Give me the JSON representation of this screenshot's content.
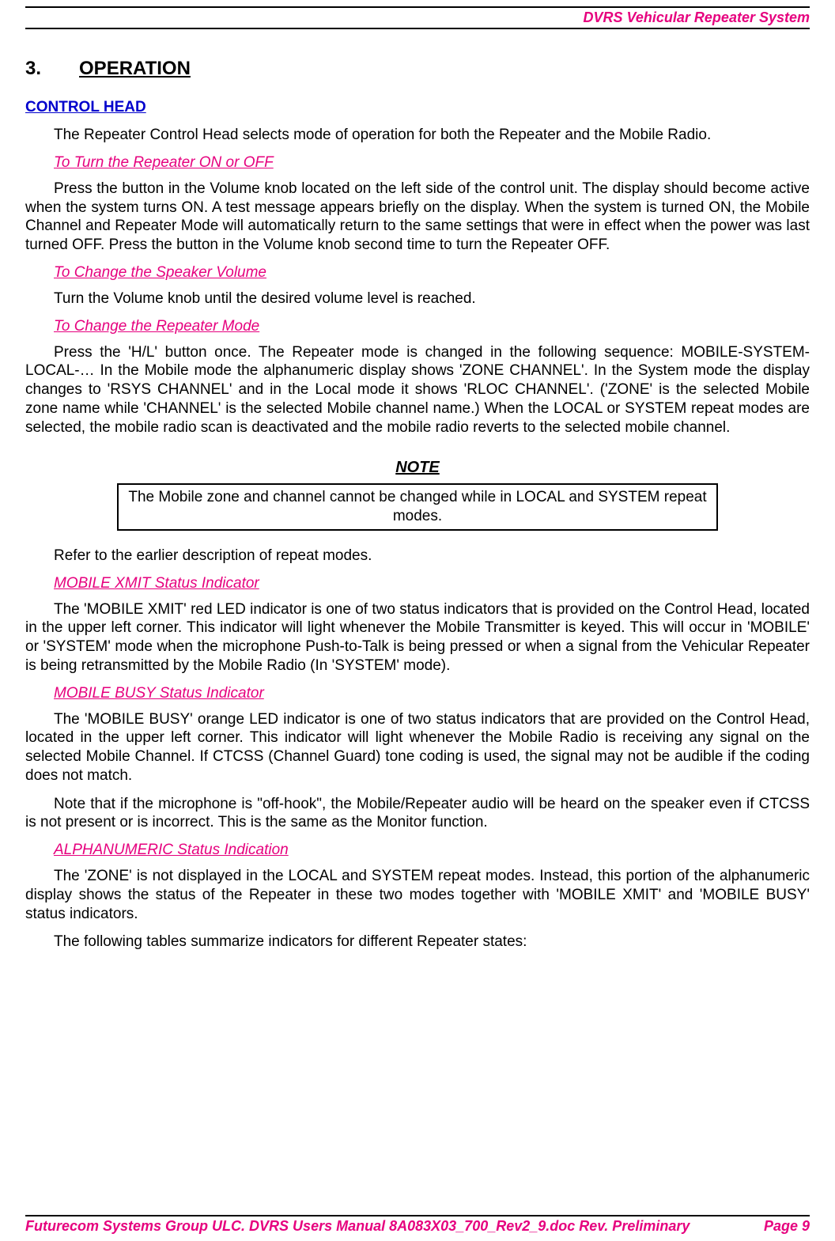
{
  "header": {
    "title": "DVRS Vehicular Repeater System"
  },
  "section": {
    "number": "3.",
    "title": "OPERATION"
  },
  "h2_control_head": "CONTROL HEAD",
  "p_control_head_intro": "The Repeater Control Head selects mode of operation for both the Repeater and the Mobile Radio.",
  "h3_turn_on_off": "To Turn the Repeater ON or OFF",
  "p_turn_on_off": "Press the button in the Volume knob located on the left side of the control unit. The display should become active when the system turns ON. A test message appears briefly on the display. When the system is turned ON, the Mobile Channel and Repeater Mode will automatically return to the same settings that were in effect when the power was last turned OFF. Press the button in the Volume knob second time to turn the Repeater OFF.",
  "h3_speaker_volume": "To Change the Speaker Volume",
  "p_speaker_volume": "Turn the Volume knob until the desired volume level is reached.",
  "h3_repeater_mode": "To Change the Repeater Mode",
  "p_repeater_mode": "Press the 'H/L' button once. The Repeater mode is changed in the following sequence: MOBILE-SYSTEM-LOCAL-… In the Mobile mode the alphanumeric display shows 'ZONE CHANNEL'. In the System mode the display changes to 'RSYS CHANNEL' and in the Local mode it shows 'RLOC CHANNEL'. ('ZONE' is the selected Mobile zone name while 'CHANNEL' is the selected Mobile channel name.) When the LOCAL or SYSTEM repeat modes are selected, the mobile radio scan is deactivated and the mobile radio reverts to the selected mobile channel.",
  "note_title": "NOTE",
  "note_text": "The Mobile zone and channel cannot be changed while in LOCAL and SYSTEM repeat modes.",
  "p_refer": "Refer to the earlier description of repeat modes.",
  "h3_xmit": "MOBILE XMIT Status Indicator",
  "p_xmit": "The 'MOBILE XMIT' red LED indicator is one of two status indicators that is provided on the Control Head, located in the upper left corner. This indicator will light whenever the Mobile Transmitter is keyed. This will occur in 'MOBILE' or 'SYSTEM' mode when the microphone Push-to-Talk is being pressed or when a signal from the Vehicular Repeater is being retransmitted by the Mobile Radio (In 'SYSTEM' mode).",
  "h3_busy": "MOBILE BUSY Status Indicator",
  "p_busy_1": "The 'MOBILE BUSY' orange LED indicator is one of two status indicators that are provided on the Control Head, located in the upper left corner. This indicator will light whenever the Mobile Radio is receiving any signal on the selected Mobile Channel. If CTCSS (Channel Guard) tone coding is used, the signal may not be audible if the coding does not match.",
  "p_busy_2": "Note that if the microphone is \"off-hook\", the Mobile/Repeater audio will be heard on the speaker even if CTCSS is not present or is incorrect. This is the same as the Monitor function.",
  "h3_alpha": "ALPHANUMERIC Status Indication",
  "p_alpha_1": "The 'ZONE' is not displayed in the LOCAL and SYSTEM repeat modes. Instead, this portion of the alphanumeric display shows the status of the Repeater in these two modes together with 'MOBILE XMIT' and 'MOBILE BUSY' status indicators.",
  "p_alpha_2": "The following tables summarize indicators for different Repeater states:",
  "footer": {
    "left": "Futurecom Systems Group ULC. DVRS Users Manual 8A083X03_700_Rev2_9.doc Rev. Preliminary",
    "right": "Page 9"
  },
  "colors": {
    "magenta": "#e6007e",
    "blue": "#0000cc",
    "black": "#000000",
    "background": "#ffffff"
  },
  "typography": {
    "body_fontsize": 19,
    "header_fontsize": 18,
    "section_fontsize": 24,
    "font_family": "Arial"
  }
}
